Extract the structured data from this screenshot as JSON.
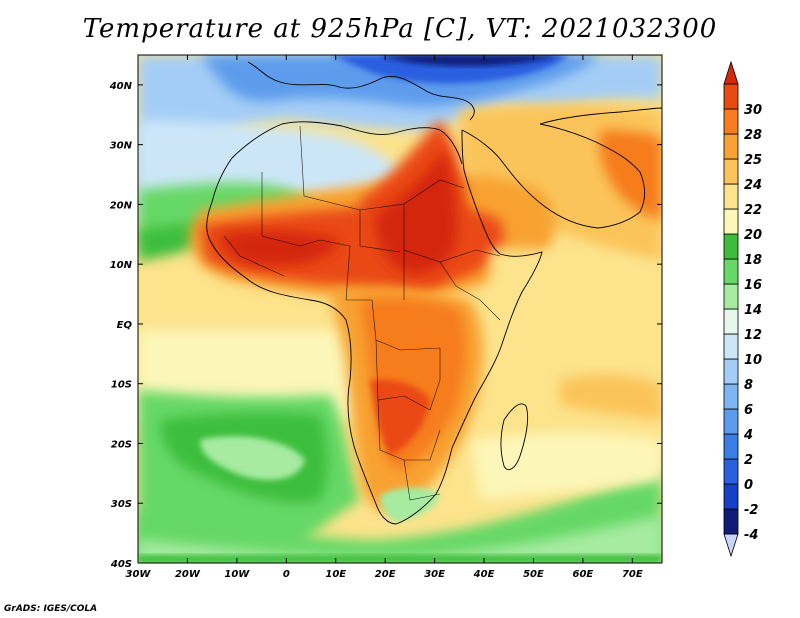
{
  "title": "Temperature at 925hPa [C], VT: 2021032300",
  "credit": "GrADS: IGES/COLA",
  "map": {
    "lon_range": [
      -30,
      76
    ],
    "lat_range": [
      -40,
      45
    ],
    "lon_ticks": [
      {
        "value": -30,
        "label": "30W"
      },
      {
        "value": -20,
        "label": "20W"
      },
      {
        "value": -10,
        "label": "10W"
      },
      {
        "value": 0,
        "label": "0"
      },
      {
        "value": 10,
        "label": "10E"
      },
      {
        "value": 20,
        "label": "20E"
      },
      {
        "value": 30,
        "label": "30E"
      },
      {
        "value": 40,
        "label": "40E"
      },
      {
        "value": 50,
        "label": "50E"
      },
      {
        "value": 60,
        "label": "60E"
      },
      {
        "value": 70,
        "label": "70E"
      }
    ],
    "lat_ticks": [
      {
        "value": 40,
        "label": "40N"
      },
      {
        "value": 30,
        "label": "30N"
      },
      {
        "value": 20,
        "label": "20N"
      },
      {
        "value": 10,
        "label": "10N"
      },
      {
        "value": 0,
        "label": "EQ"
      },
      {
        "value": -10,
        "label": "10S"
      },
      {
        "value": -20,
        "label": "20S"
      },
      {
        "value": -30,
        "label": "30S"
      },
      {
        "value": -40,
        "label": "40S"
      }
    ]
  },
  "colorbar": {
    "levels": [
      "-4",
      "-2",
      "0",
      "2",
      "4",
      "6",
      "8",
      "10",
      "12",
      "14",
      "16",
      "18",
      "20",
      "22",
      "24",
      "25",
      "28",
      "30"
    ],
    "colors": [
      "#c8d6ff",
      "#101c78",
      "#1740c8",
      "#2a5fe0",
      "#3b7de6",
      "#5d9cec",
      "#7db4f2",
      "#a4cdf6",
      "#cce6f8",
      "#e6f8ec",
      "#a6eba0",
      "#66d866",
      "#3cbe3c",
      "#fcf6b8",
      "#fce38c",
      "#fbc45a",
      "#f8a233",
      "#f67c1f",
      "#ea4a12",
      "#d42808"
    ]
  }
}
